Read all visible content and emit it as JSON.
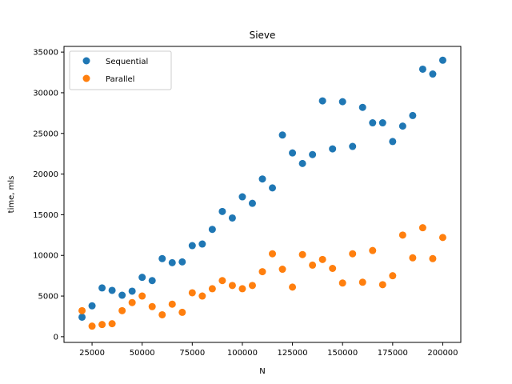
{
  "chart_data": {
    "type": "scatter",
    "title": "Sieve",
    "xlabel": "N",
    "ylabel": "time, mls",
    "xlim": [
      11000,
      209000
    ],
    "ylim": [
      -700,
      35700
    ],
    "xticks": [
      25000,
      50000,
      75000,
      100000,
      125000,
      150000,
      175000,
      200000
    ],
    "yticks": [
      0,
      5000,
      10000,
      15000,
      20000,
      25000,
      30000,
      35000
    ],
    "grid": false,
    "legend_position": "top-left",
    "series": [
      {
        "name": "Sequential",
        "color": "#1f77b4",
        "x": [
          20000,
          25000,
          30000,
          35000,
          40000,
          45000,
          50000,
          55000,
          60000,
          65000,
          70000,
          75000,
          80000,
          85000,
          90000,
          95000,
          100000,
          105000,
          110000,
          115000,
          120000,
          125000,
          130000,
          135000,
          140000,
          145000,
          150000,
          155000,
          160000,
          165000,
          170000,
          175000,
          180000,
          185000,
          190000,
          195000,
          200000
        ],
        "y": [
          2400,
          3800,
          6000,
          5700,
          5100,
          5600,
          7300,
          6900,
          9600,
          9100,
          9200,
          11200,
          11400,
          13200,
          15400,
          14600,
          17200,
          16400,
          19400,
          18300,
          24800,
          22600,
          21300,
          22400,
          29000,
          23100,
          28900,
          23400,
          28200,
          26300,
          26300,
          24000,
          25900,
          27200,
          32900,
          32300,
          34000
        ]
      },
      {
        "name": "Parallel",
        "color": "#ff7f0e",
        "x": [
          20000,
          25000,
          30000,
          35000,
          40000,
          45000,
          50000,
          55000,
          60000,
          65000,
          70000,
          75000,
          80000,
          85000,
          90000,
          95000,
          100000,
          105000,
          110000,
          115000,
          120000,
          125000,
          130000,
          135000,
          140000,
          145000,
          150000,
          155000,
          160000,
          165000,
          170000,
          175000,
          180000,
          185000,
          190000,
          195000,
          200000
        ],
        "y": [
          3200,
          1300,
          1500,
          1600,
          3200,
          4200,
          5000,
          3700,
          2700,
          4000,
          3000,
          5400,
          5000,
          5900,
          6900,
          6300,
          5900,
          6300,
          8000,
          10200,
          8300,
          6100,
          10100,
          8800,
          9500,
          8400,
          6600,
          10200,
          6700,
          10600,
          6400,
          7500,
          12500,
          9700,
          13400,
          9600,
          12200
        ]
      }
    ]
  }
}
